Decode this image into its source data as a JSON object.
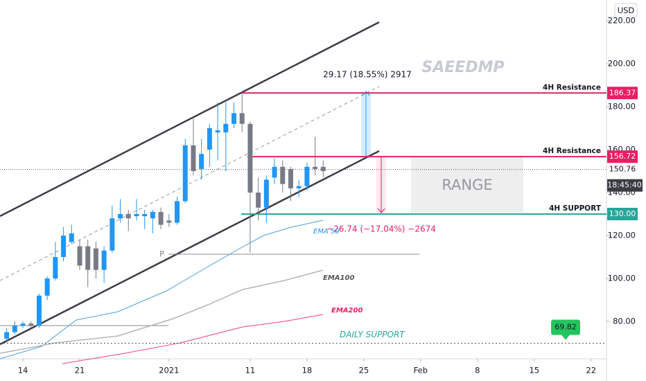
{
  "chart_data": {
    "type": "candlestick",
    "watermark": "SAEEDMP",
    "currency": "USD",
    "x": [
      -2,
      -1,
      0,
      1,
      2,
      3,
      4,
      5,
      6,
      7,
      8,
      9,
      10,
      11,
      12,
      13,
      14,
      15,
      16,
      17,
      18,
      19,
      20,
      21,
      22,
      23,
      24,
      25,
      26,
      27,
      28,
      29,
      30,
      31,
      32,
      33,
      34,
      35,
      36,
      37
    ],
    "open": [
      72,
      75,
      78,
      79,
      78,
      92,
      100,
      110,
      117,
      115,
      115,
      114,
      104,
      113,
      128,
      130,
      129,
      129,
      128,
      131,
      127,
      126,
      136,
      162,
      151,
      160,
      168,
      168,
      172,
      177,
      172,
      140,
      133,
      147,
      152,
      151,
      142,
      143,
      152,
      152
    ],
    "high": [
      77,
      80,
      80,
      80,
      93,
      101,
      117,
      124,
      125,
      118,
      118,
      117,
      115,
      134,
      137,
      132,
      137,
      132,
      132,
      133,
      130,
      138,
      165,
      175,
      165,
      172,
      182,
      182,
      182,
      186.37,
      173,
      147,
      148,
      156,
      155,
      152,
      146,
      154,
      166,
      155
    ],
    "low": [
      70,
      74,
      77,
      77,
      77,
      90,
      99,
      108,
      116,
      104,
      96,
      100,
      98,
      112,
      126,
      122,
      127,
      123,
      121,
      123,
      124,
      125,
      135,
      148,
      146,
      152,
      155,
      150,
      170,
      168,
      112,
      127,
      126,
      144,
      140,
      136,
      138,
      141,
      148,
      147
    ],
    "close": [
      75,
      78,
      79,
      78,
      92,
      100,
      110,
      120,
      121,
      106,
      104,
      104,
      113,
      128,
      130,
      128,
      130,
      130,
      131,
      125,
      126,
      136,
      162,
      150,
      158,
      170,
      169,
      172,
      177,
      172,
      140,
      133,
      146,
      152,
      144,
      142,
      143,
      152,
      151,
      150
    ],
    "up_color": "#2196f3",
    "down_color": "#787b86",
    "xlim": [
      -2.82,
      71.9
    ],
    "xticks": [
      {
        "value": 0,
        "label": "14"
      },
      {
        "value": 7,
        "label": "21"
      },
      {
        "value": 18,
        "label": "2021"
      },
      {
        "value": 28,
        "label": "11"
      },
      {
        "value": 35,
        "label": "18"
      },
      {
        "value": 42,
        "label": "25"
      },
      {
        "value": 49,
        "label": "Feb"
      },
      {
        "value": 56,
        "label": "8"
      },
      {
        "value": 63,
        "label": "15"
      },
      {
        "value": 70,
        "label": "22"
      }
    ],
    "ylim": [
      62.58,
      229.68
    ],
    "yticks": [
      {
        "value": 80,
        "label": "80.00"
      },
      {
        "value": 100,
        "label": "100.00"
      },
      {
        "value": 120,
        "label": "120.00"
      },
      {
        "value": 140,
        "label": "140.00"
      },
      {
        "value": 160,
        "label": "160.00"
      },
      {
        "value": 180,
        "label": "180.00"
      },
      {
        "value": 200,
        "label": "200.00"
      },
      {
        "value": 220,
        "label": "220.00"
      }
    ],
    "levels": [
      {
        "name": "4H Resistance",
        "value": 186.37,
        "color": "#e91e63"
      },
      {
        "name": "4H Resistance",
        "value": 156.72,
        "color": "#e91e63"
      },
      {
        "name": "4H SUPPORT",
        "value": 130,
        "label": "130.00",
        "color": "#26a69a"
      }
    ],
    "current": {
      "value": 150.76,
      "countdown": "18:45:40"
    },
    "daily_support": {
      "name": "DAILY SUPPORT",
      "value": 69.82,
      "color": "#22c55e"
    },
    "range_label": "RANGE",
    "gain_label": "29.17 (18.55%) 2917",
    "loss_label": "−26.74 (−17.04%) −2674",
    "pivot_label": "P",
    "emas": [
      {
        "name": "EMA 50",
        "color": "#4a9fe0"
      },
      {
        "name": "EMA100",
        "color": "#555"
      },
      {
        "name": "EMA200",
        "color": "#e91e63"
      }
    ]
  }
}
